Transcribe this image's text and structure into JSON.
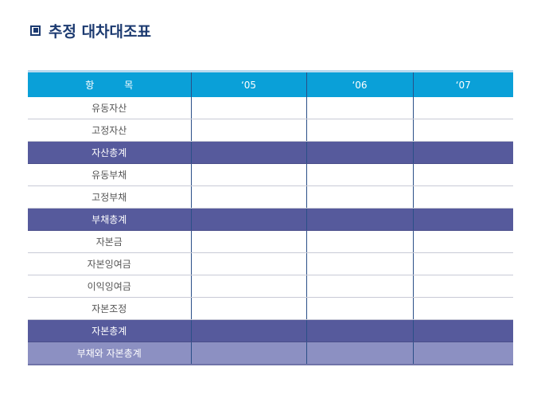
{
  "title": {
    "icon": "square-bullet-icon",
    "text": "추정 대차대조표"
  },
  "colors": {
    "title": "#1c3a70",
    "header_bg": "#0aa0d8",
    "total_bg": "#565a9c",
    "grand_total_bg": "#8c90c2"
  },
  "table": {
    "headers": [
      "항목",
      "‘05",
      "‘06",
      "‘07"
    ],
    "rows": [
      {
        "label": "유동자산",
        "type": "normal",
        "values": [
          "",
          "",
          ""
        ]
      },
      {
        "label": "고정자산",
        "type": "normal",
        "values": [
          "",
          "",
          ""
        ]
      },
      {
        "label": "자산총계",
        "type": "total",
        "values": [
          "",
          "",
          ""
        ]
      },
      {
        "label": "유동부채",
        "type": "normal",
        "values": [
          "",
          "",
          ""
        ]
      },
      {
        "label": "고정부채",
        "type": "normal",
        "values": [
          "",
          "",
          ""
        ]
      },
      {
        "label": "부채총계",
        "type": "total",
        "values": [
          "",
          "",
          ""
        ]
      },
      {
        "label": "자본금",
        "type": "normal",
        "values": [
          "",
          "",
          ""
        ]
      },
      {
        "label": "자본잉여금",
        "type": "normal",
        "values": [
          "",
          "",
          ""
        ]
      },
      {
        "label": "이익잉여금",
        "type": "normal",
        "values": [
          "",
          "",
          ""
        ]
      },
      {
        "label": "자본조정",
        "type": "normal",
        "values": [
          "",
          "",
          ""
        ]
      },
      {
        "label": "자본총계",
        "type": "total",
        "values": [
          "",
          "",
          ""
        ]
      },
      {
        "label": "부채와 자본총계",
        "type": "grand",
        "values": [
          "",
          "",
          ""
        ]
      }
    ]
  }
}
